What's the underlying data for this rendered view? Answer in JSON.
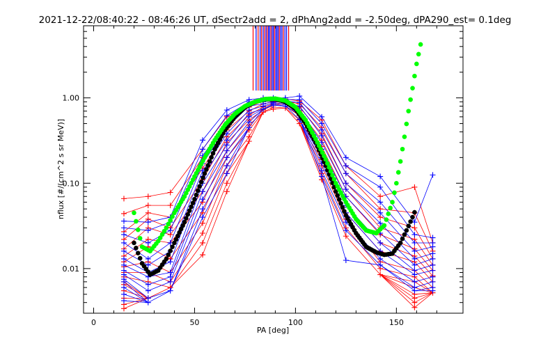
{
  "chart_data": {
    "type": "line",
    "title": "2021-12-22/08:40:22 - 08:46:26 UT, dSectr2add = 2, dPhAng2add = -2.50deg, dPA290_est=   0.1deg",
    "xlabel": "PA [deg]",
    "ylabel": "nflux [#/(cm^2 s sr MeV)]",
    "xlim": [
      -5,
      183
    ],
    "ylim": [
      0.003,
      7
    ],
    "yscale": "log",
    "grid": false,
    "x_ticks": [
      0,
      50,
      100,
      150
    ],
    "x_tick_labels": [
      "0",
      "50",
      "100",
      "150"
    ],
    "y_ticks": [
      0.01,
      0.1,
      1.0
    ],
    "y_tick_labels": [
      "0.01",
      "0.10",
      "1.00"
    ],
    "colors": {
      "red": "#ff0000",
      "blue": "#0000ff",
      "green": "#00ff00",
      "black": "#000000"
    },
    "series": [
      {
        "color": "#00ff00",
        "style": "thick-dots",
        "x": [
          20,
          24,
          28,
          32,
          36,
          40,
          45,
          50,
          55,
          60,
          65,
          70,
          75,
          80,
          85,
          90,
          95,
          100,
          105,
          110,
          115,
          120,
          125,
          130,
          135,
          140,
          144,
          148,
          150,
          152,
          154,
          156,
          158,
          160,
          163
        ],
        "y": [
          0.045,
          0.018,
          0.016,
          0.021,
          0.03,
          0.045,
          0.07,
          0.12,
          0.2,
          0.32,
          0.48,
          0.65,
          0.8,
          0.9,
          0.97,
          0.98,
          0.93,
          0.78,
          0.55,
          0.33,
          0.19,
          0.1,
          0.06,
          0.038,
          0.028,
          0.026,
          0.032,
          0.06,
          0.1,
          0.18,
          0.35,
          0.7,
          1.3,
          2.5,
          5.5
        ]
      },
      {
        "color": "#000000",
        "style": "thick-dots",
        "x": [
          20,
          24,
          28,
          32,
          36,
          40,
          45,
          50,
          55,
          60,
          65,
          70,
          75,
          80,
          85,
          90,
          95,
          100,
          105,
          110,
          115,
          120,
          125,
          130,
          135,
          140,
          144,
          148,
          152,
          155,
          158,
          160
        ],
        "y": [
          0.02,
          0.0115,
          0.0085,
          0.0095,
          0.013,
          0.02,
          0.035,
          0.065,
          0.13,
          0.25,
          0.42,
          0.6,
          0.78,
          0.9,
          0.96,
          0.97,
          0.9,
          0.74,
          0.5,
          0.3,
          0.16,
          0.08,
          0.042,
          0.026,
          0.018,
          0.0155,
          0.0145,
          0.015,
          0.02,
          0.028,
          0.04,
          0.052
        ]
      }
    ],
    "clusters": [
      {
        "x": 15,
        "red": [
          0.066,
          0.044,
          0.027,
          0.022,
          0.017,
          0.014,
          0.012,
          0.0105,
          0.009,
          0.008,
          0.007,
          0.0065,
          0.0055,
          0.0045,
          0.0038,
          0.0034
        ],
        "blue": [
          0.036,
          0.03,
          0.025,
          0.02,
          0.016,
          0.013,
          0.011,
          0.0095,
          0.0085,
          0.0075,
          0.007,
          0.006,
          0.005,
          0.0042
        ]
      },
      {
        "x": 27,
        "red": [
          0.07,
          0.055,
          0.045,
          0.038,
          0.03,
          0.022,
          0.018,
          0.012,
          0.009,
          0.007,
          0.0045
        ],
        "blue": [
          0.035,
          0.028,
          0.02,
          0.013,
          0.011,
          0.009,
          0.008,
          0.0065,
          0.0055,
          0.0045,
          0.004
        ]
      },
      {
        "x": 38,
        "red": [
          0.078,
          0.055,
          0.04,
          0.03,
          0.025,
          0.02,
          0.013,
          0.009,
          0.007,
          0.006
        ],
        "blue": [
          0.04,
          0.035,
          0.028,
          0.02,
          0.016,
          0.012,
          0.009,
          0.008,
          0.007,
          0.0055
        ]
      },
      {
        "x": 54,
        "red": [
          0.25,
          0.2,
          0.15,
          0.11,
          0.08,
          0.06,
          0.045,
          0.034,
          0.026,
          0.02,
          0.0145
        ],
        "blue": [
          0.32,
          0.25,
          0.21,
          0.17,
          0.14,
          0.12,
          0.1,
          0.08,
          0.065,
          0.05,
          0.04
        ]
      },
      {
        "x": 66,
        "red": [
          0.6,
          0.5,
          0.42,
          0.35,
          0.3,
          0.24,
          0.2,
          0.16,
          0.13,
          0.1,
          0.08
        ],
        "blue": [
          0.72,
          0.62,
          0.52,
          0.45,
          0.38,
          0.32,
          0.28,
          0.24,
          0.2,
          0.16,
          0.13
        ]
      },
      {
        "x": 77,
        "red": [
          0.85,
          0.78,
          0.7,
          0.63,
          0.55,
          0.48,
          0.42,
          0.35,
          0.31
        ],
        "blue": [
          0.95,
          0.9,
          0.85,
          0.8,
          0.72,
          0.66,
          0.6,
          0.52,
          0.45
        ]
      },
      {
        "x": 84,
        "red": [
          0.98,
          0.92,
          0.85,
          0.78,
          0.72,
          0.68
        ],
        "blue": [
          1.0,
          0.95,
          0.9,
          0.85,
          0.8,
          0.74
        ]
      },
      {
        "x": 89,
        "red": [
          0.98,
          0.93,
          0.9,
          0.85,
          0.82,
          0.78,
          0.74
        ],
        "blue": [
          1.0,
          0.97,
          0.94,
          0.91,
          0.88,
          0.85,
          0.82
        ]
      },
      {
        "x": 95,
        "red": [
          0.97,
          0.92,
          0.88,
          0.84,
          0.8,
          0.76
        ],
        "blue": [
          1.0,
          0.96,
          0.92,
          0.88,
          0.84,
          0.8
        ]
      },
      {
        "x": 102,
        "red": [
          0.92,
          0.85,
          0.78,
          0.7,
          0.62,
          0.55,
          0.5
        ],
        "blue": [
          1.05,
          0.95,
          0.88,
          0.8,
          0.72,
          0.64,
          0.56
        ]
      },
      {
        "x": 113,
        "red": [
          0.55,
          0.45,
          0.38,
          0.32,
          0.27,
          0.22,
          0.19,
          0.16,
          0.13,
          0.11
        ],
        "blue": [
          0.6,
          0.5,
          0.42,
          0.36,
          0.3,
          0.25,
          0.2,
          0.17,
          0.14,
          0.12
        ]
      },
      {
        "x": 125,
        "red": [
          0.16,
          0.13,
          0.1,
          0.085,
          0.07,
          0.055,
          0.045,
          0.038,
          0.03,
          0.024
        ],
        "blue": [
          0.2,
          0.16,
          0.13,
          0.1,
          0.085,
          0.07,
          0.055,
          0.045,
          0.035,
          0.028,
          0.0125
        ]
      },
      {
        "x": 142,
        "red": [
          0.07,
          0.05,
          0.04,
          0.03,
          0.025,
          0.02,
          0.016,
          0.012,
          0.01,
          0.0085
        ],
        "blue": [
          0.12,
          0.09,
          0.06,
          0.045,
          0.034,
          0.026,
          0.02,
          0.016,
          0.013,
          0.011
        ]
      },
      {
        "x": 159,
        "red": [
          0.09,
          0.045,
          0.03,
          0.022,
          0.017,
          0.014,
          0.012,
          0.0095,
          0.008,
          0.007,
          0.006,
          0.005,
          0.0045,
          0.004,
          0.0035
        ],
        "blue": [
          0.035,
          0.025,
          0.02,
          0.016,
          0.013,
          0.011,
          0.0095,
          0.0085,
          0.007,
          0.006,
          0.0055
        ]
      },
      {
        "x": 168,
        "red": [
          0.02,
          0.016,
          0.013,
          0.011,
          0.0095,
          0.0082,
          0.007,
          0.006,
          0.0052
        ],
        "blue": [
          0.125,
          0.023,
          0.02,
          0.018,
          0.015,
          0.013,
          0.011,
          0.0095,
          0.008,
          0.007,
          0.006,
          0.0055
        ]
      }
    ],
    "spikes": [
      {
        "x": 79,
        "color": "#ff0000"
      },
      {
        "x": 80.5,
        "color": "#0000ff"
      },
      {
        "x": 81.5,
        "color": "#ff0000"
      },
      {
        "x": 82.5,
        "color": "#0000ff"
      },
      {
        "x": 83.2,
        "color": "#ff0000"
      },
      {
        "x": 84,
        "color": "#0000ff"
      },
      {
        "x": 84.7,
        "color": "#ff0000"
      },
      {
        "x": 85.4,
        "color": "#0000ff"
      },
      {
        "x": 86,
        "color": "#ff0000"
      },
      {
        "x": 86.6,
        "color": "#0000ff"
      },
      {
        "x": 87.2,
        "color": "#0000ff"
      },
      {
        "x": 87.8,
        "color": "#ff0000"
      },
      {
        "x": 88.4,
        "color": "#0000ff"
      },
      {
        "x": 89,
        "color": "#0000ff"
      },
      {
        "x": 89.6,
        "color": "#ff0000"
      },
      {
        "x": 90.2,
        "color": "#0000ff"
      },
      {
        "x": 90.8,
        "color": "#0000ff"
      },
      {
        "x": 91.4,
        "color": "#0000ff"
      },
      {
        "x": 92,
        "color": "#ff0000"
      },
      {
        "x": 92.6,
        "color": "#0000ff"
      },
      {
        "x": 93.3,
        "color": "#0000ff"
      },
      {
        "x": 94,
        "color": "#ff0000"
      },
      {
        "x": 94.8,
        "color": "#0000ff"
      },
      {
        "x": 95.6,
        "color": "#0000ff"
      },
      {
        "x": 96.6,
        "color": "#ff0000"
      }
    ]
  }
}
